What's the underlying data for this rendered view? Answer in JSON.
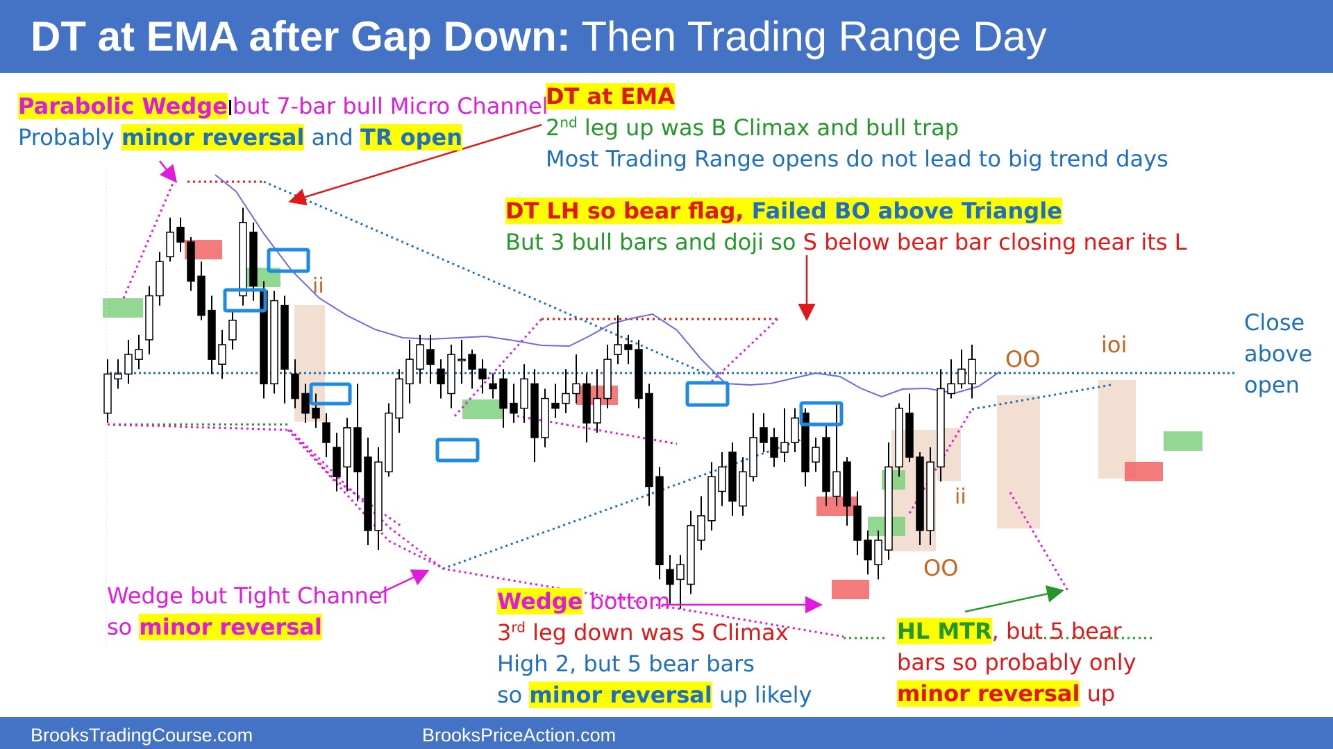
{
  "header": {
    "title_bold": "DT at EMA after Gap Down:",
    "title_rest": " Then Trading Range Day"
  },
  "footer": {
    "left": "BrooksTradingCourse.com",
    "right": "BrooksPriceAction.com"
  },
  "annotations": {
    "parabolic_a": "Parabolic Wedge",
    "parabolic_b": "but 7-bar bull Micro Channel",
    "probably_a": "Probably ",
    "probably_b": "minor reversal",
    "probably_c": " and ",
    "probably_d": "TR open",
    "dt_ema": "DT at EMA",
    "leg_pre": "2",
    "leg_sup": "nd",
    "leg_rest": " leg up was B Climax and bull trap",
    "most": "Most Trading Range opens do not lead to big trend days",
    "dtlh_a": "DT LH so bear flag,",
    "dtlh_b": "Failed BO above Triangle",
    "but3_a": "But 3 bull bars and doji so ",
    "but3_b": "S below bear bar closing near its L",
    "ii1": "ii",
    "ii2": "ii",
    "oo1": "OO",
    "oo2": "OO",
    "ioi": "ioi",
    "close1": "Close",
    "close2": "above",
    "close3": "open",
    "wtc_a": "Wedge but Tight Channel",
    "wtc_b": "so ",
    "wtc_c": "minor reversal",
    "wb_a": "Wedge",
    "wb_b": " bottom",
    "third_pre": "3",
    "third_sup": "rd",
    "third_rest": " leg down was S Climax",
    "high2": "High 2, but 5 bear bars",
    "so_a": "so ",
    "so_b": "minor reversal",
    "so_c": " up likely",
    "hl_a": "HL MTR",
    "hl_b": ", but 5 bear",
    "hl_c": "bars so probably only",
    "hl_d": "minor reversal",
    "hl_e": " up"
  },
  "colors": {
    "header": "#4472C4",
    "bull": "#FFFFFF",
    "bear": "#000000",
    "ema": "#6A6AE8",
    "magenta": "#E01BDB",
    "blue_dots": "#1F6FC0",
    "red": "#E01818",
    "green": "#24962A",
    "highlight": "#FFFF00"
  },
  "chart_data": {
    "type": "candlestick",
    "title": "DT at EMA after Gap Down: Then Trading Range Day",
    "y_scale": "price (unlabeled, 0-100 relative)",
    "open_level": 54.2,
    "candles": [
      [
        46,
        54,
        57,
        44
      ],
      [
        53,
        54,
        57,
        51
      ],
      [
        54,
        58,
        61,
        52
      ],
      [
        57,
        59,
        62,
        55
      ],
      [
        61,
        70,
        72,
        58
      ],
      [
        70,
        77,
        79,
        68
      ],
      [
        78,
        83,
        86,
        77
      ],
      [
        84,
        81,
        86,
        79
      ],
      [
        81,
        73,
        82,
        71
      ],
      [
        74,
        66,
        77,
        65
      ],
      [
        67,
        57,
        70,
        54
      ],
      [
        56,
        60,
        63,
        53
      ],
      [
        61,
        65,
        67,
        59
      ],
      [
        70,
        85,
        88,
        68
      ],
      [
        83,
        72,
        85,
        69
      ],
      [
        71,
        52,
        73,
        49
      ],
      [
        52,
        69,
        71,
        50
      ],
      [
        68,
        55,
        70,
        48
      ],
      [
        54,
        49,
        57,
        47
      ],
      [
        50,
        46,
        52,
        44
      ],
      [
        47,
        45,
        50,
        43
      ],
      [
        44,
        40,
        46,
        37
      ],
      [
        39,
        33,
        42,
        30
      ],
      [
        35,
        43,
        45,
        30
      ],
      [
        43,
        34,
        52,
        28
      ],
      [
        37,
        22,
        41,
        19
      ],
      [
        22,
        36,
        39,
        18
      ],
      [
        34,
        46,
        48,
        33
      ],
      [
        45,
        53,
        55,
        42
      ],
      [
        52,
        57,
        61,
        48
      ],
      [
        55,
        60,
        62,
        52
      ],
      [
        59,
        56,
        62,
        52
      ],
      [
        55,
        52,
        57,
        49
      ],
      [
        50,
        58,
        60,
        47
      ],
      [
        57,
        57,
        61,
        52
      ],
      [
        58,
        55,
        59,
        51
      ],
      [
        55,
        53,
        57,
        50
      ],
      [
        52,
        51,
        54,
        49
      ],
      [
        53,
        47,
        55,
        43
      ],
      [
        48,
        46,
        52,
        44
      ],
      [
        47,
        53,
        56,
        44
      ],
      [
        52,
        41,
        55,
        36
      ],
      [
        41,
        49,
        51,
        39
      ],
      [
        48,
        47,
        52,
        45
      ],
      [
        48,
        50,
        55,
        46
      ],
      [
        50,
        52,
        58,
        48
      ],
      [
        52,
        44,
        54,
        40
      ],
      [
        44,
        49,
        55,
        42
      ],
      [
        49,
        57,
        60,
        47
      ],
      [
        58,
        60,
        66,
        56
      ],
      [
        60,
        59,
        62,
        56
      ],
      [
        59,
        49,
        61,
        47
      ],
      [
        50,
        31,
        52,
        27
      ],
      [
        33,
        15,
        35,
        12
      ],
      [
        14,
        11,
        17,
        7
      ],
      [
        12,
        15,
        17,
        6
      ],
      [
        11,
        23,
        26,
        9
      ],
      [
        20,
        25,
        29,
        18
      ],
      [
        24,
        33,
        36,
        22
      ],
      [
        30,
        35,
        38,
        27
      ],
      [
        38,
        28,
        40,
        25
      ],
      [
        27,
        34,
        37,
        25
      ],
      [
        33,
        41,
        46,
        32
      ],
      [
        43,
        40,
        46,
        38
      ],
      [
        41,
        37,
        43,
        35
      ],
      [
        38,
        40,
        47,
        36
      ],
      [
        40,
        45,
        47,
        38
      ],
      [
        46,
        34,
        47,
        31
      ],
      [
        36,
        39,
        41,
        34
      ],
      [
        41,
        30,
        44,
        27
      ],
      [
        29,
        34,
        48,
        27
      ],
      [
        36,
        27,
        37,
        23
      ],
      [
        27,
        20,
        30,
        17
      ],
      [
        20,
        16,
        22,
        13
      ],
      [
        15,
        20,
        22,
        12
      ],
      [
        18,
        35,
        40,
        16
      ],
      [
        35,
        47,
        48,
        33
      ],
      [
        46,
        37,
        50,
        36
      ],
      [
        37,
        22,
        38,
        19
      ],
      [
        22,
        36,
        39,
        19
      ],
      [
        35,
        51,
        55,
        32
      ],
      [
        50,
        52,
        57,
        49
      ],
      [
        52,
        55,
        59,
        51
      ],
      [
        52,
        57,
        60,
        49
      ]
    ],
    "ema": [
      [
        125,
        null
      ],
      [
        310,
        252
      ],
      [
        340,
        276
      ],
      [
        380,
        337
      ],
      [
        420,
        390
      ],
      [
        460,
        430
      ],
      [
        500,
        455
      ],
      [
        540,
        475
      ],
      [
        580,
        487
      ],
      [
        620,
        489
      ],
      [
        660,
        487
      ],
      [
        700,
        485
      ],
      [
        740,
        491
      ],
      [
        780,
        498
      ],
      [
        820,
        499
      ],
      [
        850,
        484
      ],
      [
        880,
        467
      ],
      [
        910,
        459
      ],
      [
        940,
        453
      ],
      [
        975,
        476
      ],
      [
        1010,
        518
      ],
      [
        1045,
        553
      ],
      [
        1080,
        555
      ],
      [
        1110,
        553
      ],
      [
        1140,
        546
      ],
      [
        1175,
        538
      ],
      [
        1210,
        543
      ],
      [
        1240,
        560
      ],
      [
        1270,
        572
      ],
      [
        1300,
        561
      ],
      [
        1335,
        560
      ],
      [
        1375,
        567
      ],
      [
        1410,
        557
      ],
      [
        1440,
        536
      ]
    ]
  }
}
